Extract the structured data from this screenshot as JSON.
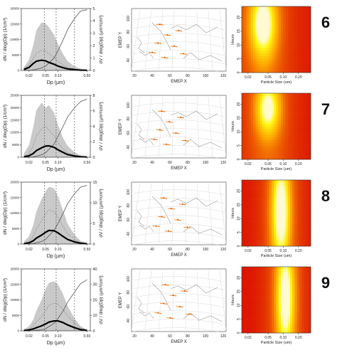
{
  "rows": [
    {
      "label": "6",
      "dist": {
        "ylim_n": [
          0,
          20000
        ],
        "yticks_n": [
          "0",
          "5000",
          "10000",
          "15000",
          "20000"
        ],
        "ylim_v": [
          0,
          5
        ],
        "yticks_v": [
          "0",
          "1",
          "2",
          "3",
          "4",
          "5"
        ],
        "xticks": [
          "0.02",
          "0.05",
          "0.10",
          "0.50"
        ],
        "band_upper": [
          1000,
          3500,
          8000,
          13000,
          15500,
          15200,
          14000,
          11500,
          8500,
          5500,
          3000,
          1300,
          600,
          300
        ],
        "band_lower": [
          0,
          0,
          0,
          0,
          0,
          0,
          0,
          0,
          0,
          0,
          0,
          0,
          0,
          0
        ],
        "mean_n": [
          300,
          1000,
          2200,
          3000,
          3300,
          3100,
          2600,
          2000,
          1400,
          900,
          500,
          250,
          100,
          50
        ],
        "dashed_n": [
          500,
          1800,
          3800,
          5600,
          6500,
          6300,
          5400,
          4200,
          2900,
          1800,
          1000,
          500,
          200,
          100
        ],
        "volume_v": [
          0.0,
          0.0,
          0.05,
          0.1,
          0.2,
          0.35,
          0.6,
          1.0,
          1.6,
          2.4,
          3.3,
          4.2,
          4.8,
          4.9
        ],
        "vlines": [
          0.047,
          0.09,
          0.25
        ]
      },
      "heatmap": {
        "hot_x": 0.04,
        "hot_width": 0.02,
        "hot_y_center": 17,
        "hot_y_spread": 9,
        "hot_strength": 1.0,
        "xticks": [
          "0.02",
          "0.05",
          "0.10",
          "0.20"
        ],
        "yticks": [
          "0",
          "5",
          "10",
          "15",
          "20"
        ]
      }
    },
    {
      "label": "7",
      "dist": {
        "ylim_n": [
          0,
          25000
        ],
        "yticks_n": [
          "0",
          "5000",
          "10000",
          "15000",
          "20000",
          "25000"
        ],
        "ylim_v": [
          0,
          8
        ],
        "yticks_v": [
          "0",
          "2",
          "4",
          "6",
          "8"
        ],
        "xticks": [
          "0.02",
          "0.05",
          "0.10",
          "0.50"
        ],
        "band_upper": [
          1500,
          5000,
          12000,
          19000,
          22000,
          20000,
          21000,
          18000,
          13000,
          8000,
          4500,
          2000,
          800,
          300
        ],
        "band_lower": [
          0,
          0,
          0,
          0,
          0,
          0,
          0,
          0,
          0,
          0,
          0,
          0,
          0,
          0
        ],
        "mean_n": [
          200,
          600,
          1500,
          2700,
          3800,
          4500,
          4600,
          4000,
          3000,
          2000,
          1100,
          500,
          200,
          80
        ],
        "dashed_n": [
          400,
          1500,
          4500,
          8500,
          11500,
          12500,
          11000,
          8500,
          5800,
          3500,
          1900,
          900,
          350,
          120
        ],
        "volume_v": [
          0.0,
          0.0,
          0.05,
          0.15,
          0.3,
          0.6,
          1.0,
          1.7,
          2.7,
          3.9,
          5.2,
          6.4,
          7.2,
          7.5
        ],
        "vlines": [
          0.047,
          0.09,
          0.25
        ]
      },
      "heatmap": {
        "hot_x": 0.05,
        "hot_width": 0.022,
        "hot_y_center": 18,
        "hot_y_spread": 7,
        "hot_strength": 0.9,
        "xticks": [
          "0.02",
          "0.05",
          "0.10",
          "0.20"
        ],
        "yticks": [
          "0",
          "5",
          "10",
          "15",
          "20"
        ]
      }
    },
    {
      "label": "8",
      "dist": {
        "ylim_n": [
          0,
          20000
        ],
        "yticks_n": [
          "0",
          "5000",
          "10000",
          "15000",
          "20000"
        ],
        "ylim_v": [
          0,
          15
        ],
        "yticks_v": [
          "0",
          "5",
          "10",
          "15"
        ],
        "xticks": [
          "0.02",
          "0.05",
          "0.10",
          "0.50"
        ],
        "band_upper": [
          800,
          2500,
          6000,
          10500,
          14500,
          17000,
          18500,
          18000,
          15500,
          11000,
          6500,
          3000,
          1000,
          300
        ],
        "band_lower": [
          0,
          0,
          0,
          0,
          0,
          0,
          0,
          0,
          0,
          0,
          0,
          0,
          0,
          0
        ],
        "mean_n": [
          100,
          400,
          1000,
          1900,
          2900,
          3800,
          4400,
          4300,
          3600,
          2500,
          1500,
          700,
          250,
          80
        ],
        "dashed_n": [
          200,
          900,
          2400,
          4800,
          7500,
          9800,
          11000,
          10500,
          8500,
          5800,
          3300,
          1500,
          500,
          150
        ],
        "volume_v": [
          0.0,
          0.05,
          0.1,
          0.3,
          0.6,
          1.1,
          2.0,
          3.3,
          5.0,
          7.3,
          9.8,
          12.2,
          13.8,
          14.2
        ],
        "vlines": [
          0.047,
          0.09,
          0.25
        ]
      },
      "heatmap": {
        "hot_x": 0.09,
        "hot_width": 0.03,
        "hot_y_center": 12,
        "hot_y_spread": 14,
        "hot_strength": 1.0,
        "xticks": [
          "0.02",
          "0.05",
          "0.10",
          "0.20"
        ],
        "yticks": [
          "0",
          "5",
          "10",
          "15",
          "20"
        ]
      }
    },
    {
      "label": "9",
      "dist": {
        "ylim_n": [
          0,
          20000
        ],
        "yticks_n": [
          "0",
          "5000",
          "10000",
          "15000",
          "20000"
        ],
        "ylim_v": [
          0,
          40
        ],
        "yticks_v": [
          "0",
          "10",
          "20",
          "30",
          "40"
        ],
        "xticks": [
          "0.02",
          "0.05",
          "0.10",
          "0.50"
        ],
        "band_upper": [
          500,
          1500,
          3500,
          6500,
          10000,
          13500,
          15500,
          16000,
          15000,
          12000,
          8000,
          4000,
          1500,
          400
        ],
        "band_lower": [
          0,
          0,
          0,
          0,
          0,
          0,
          0,
          0,
          0,
          0,
          0,
          0,
          0,
          0
        ],
        "mean_n": [
          100,
          300,
          600,
          1000,
          1600,
          2200,
          2800,
          3200,
          3200,
          2700,
          1900,
          1000,
          400,
          120
        ],
        "dashed_n": [
          200,
          600,
          1400,
          2800,
          4600,
          6500,
          8200,
          9000,
          8600,
          7000,
          4800,
          2500,
          900,
          250
        ],
        "volume_v": [
          0.0,
          0.0,
          0.1,
          0.3,
          0.7,
          1.4,
          2.7,
          4.8,
          8.0,
          12.5,
          18.5,
          25.0,
          30.5,
          33.0
        ],
        "vlines": [
          0.047,
          0.09,
          0.25
        ]
      },
      "heatmap": {
        "hot_x": 0.11,
        "hot_width": 0.035,
        "hot_y_center": 12,
        "hot_y_spread": 14,
        "hot_strength": 1.0,
        "xticks": [
          "0.02",
          "0.05",
          "0.10",
          "0.20"
        ],
        "yticks": [
          "0",
          "5",
          "10",
          "15",
          "20"
        ]
      }
    }
  ],
  "dist_labels": {
    "ylabel_left": "dN / dlog(Dp) (1/cm³)",
    "ylabel_right": "dV / dlog(Dp) (µm³/cm³)",
    "xlabel": "Dp (µm)"
  },
  "map_labels": {
    "xlabel": "EMEP X",
    "ylabel": "EMEP Y",
    "xticks": [
      "20",
      "40",
      "60",
      "80",
      "100",
      "120"
    ],
    "yticks": [
      "40",
      "60",
      "80",
      "100"
    ]
  },
  "heatmap_labels": {
    "xlabel": "Particle Size (um)",
    "ylabel": "Hours"
  },
  "colors": {
    "band": "#c8c8c8",
    "mean": "#000000",
    "dashed": "#888888",
    "volume": "#555555",
    "heat_cold": "#e00000",
    "heat_hot": "#ffffe0",
    "trajectory": "#ff7700",
    "map_lines": "#9a9a9a"
  },
  "chart_data": [
    {
      "type": "area",
      "title": "",
      "categories_um": [
        0.015,
        0.02,
        0.025,
        0.03,
        0.04,
        0.05,
        0.06,
        0.08,
        0.1,
        0.13,
        0.17,
        0.25,
        0.35,
        0.5
      ],
      "series": []
    },
    {
      "type": "heatmap",
      "xlabel": "Particle Size (um)",
      "ylabel": "Hours"
    }
  ]
}
